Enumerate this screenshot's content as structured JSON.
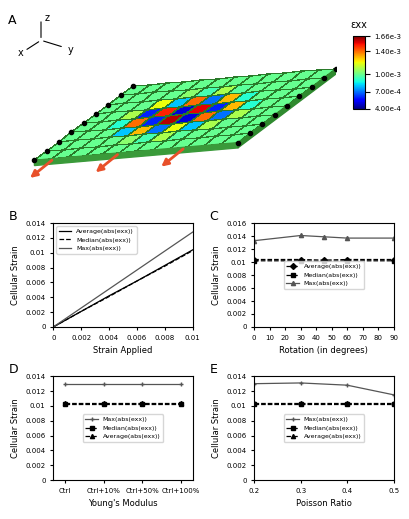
{
  "chart_data": [
    {
      "type": "heatmap",
      "title": "A",
      "annotations": [
        "x",
        "y",
        "z"
      ],
      "tick_labels": false,
      "cells": [
        [
          0.001,
          0.001,
          0.001,
          0.001,
          0.001,
          0.001,
          0.001,
          0.001,
          0.001,
          0.001,
          0.001,
          0.001
        ],
        [
          0.001,
          0.001,
          0.001,
          0.001,
          0.00105,
          0.00095,
          0.0011,
          0.00098,
          0.001,
          0.001,
          0.001,
          0.001
        ],
        [
          0.001,
          0.001,
          0.001,
          0.0012,
          0.0008,
          0.0014,
          0.0007,
          0.0013,
          0.0009,
          0.001,
          0.001,
          0.001
        ],
        [
          0.001,
          0.001,
          0.0011,
          0.0006,
          0.0015,
          0.0005,
          0.00155,
          0.0006,
          0.0013,
          0.0009,
          0.001,
          0.001
        ],
        [
          0.001,
          0.001,
          0.0009,
          0.0014,
          0.0006,
          0.0016,
          0.0005,
          0.0014,
          0.0007,
          0.0011,
          0.001,
          0.001
        ],
        [
          0.001,
          0.001,
          0.001,
          0.0008,
          0.0013,
          0.0007,
          0.0012,
          0.0008,
          0.0011,
          0.001,
          0.001,
          0.001
        ],
        [
          0.001,
          0.001,
          0.001,
          0.001,
          0.00105,
          0.00095,
          0.0011,
          0.00098,
          0.001,
          0.001,
          0.001,
          0.001
        ],
        [
          0.001,
          0.001,
          0.001,
          0.001,
          0.001,
          0.001,
          0.001,
          0.001,
          0.001,
          0.001,
          0.001,
          0.001
        ]
      ],
      "colorbar_label": "εxx",
      "colorbar_range": [
        0.0004,
        0.00166
      ],
      "colorbar_ticks": [
        {
          "value": 0.00166,
          "label": "1.66e-3"
        },
        {
          "value": 0.0014,
          "label": "1.40e-3"
        },
        {
          "value": 0.001,
          "label": "1.00e-3"
        },
        {
          "value": 0.0007,
          "label": "7.00e-4"
        },
        {
          "value": 0.0004,
          "label": "4.00e-4"
        }
      ]
    },
    {
      "type": "line",
      "title": "B",
      "xlabel": "Strain Applied",
      "ylabel": "Cellular Strain",
      "x": [
        0,
        0.002,
        0.004,
        0.006,
        0.008,
        0.01
      ],
      "series": [
        {
          "name": "Average(abs(exx))",
          "color": "#000000",
          "line_style": "solid",
          "values": [
            0,
            0.0021,
            0.0042,
            0.0062,
            0.0083,
            0.0104
          ]
        },
        {
          "name": "Median(abs(exx))",
          "color": "#000000",
          "line_style": "dashed",
          "values": [
            0,
            0.0021,
            0.0041,
            0.0062,
            0.0082,
            0.0103
          ]
        },
        {
          "name": "Max(abs(exx))",
          "color": "#555555",
          "line_style": "solid",
          "values": [
            0,
            0.00256,
            0.00512,
            0.00768,
            0.01024,
            0.0128
          ]
        }
      ],
      "xlim": [
        0,
        0.01
      ],
      "xticks": [
        0,
        0.002,
        0.004,
        0.006,
        0.008,
        0.01
      ],
      "ylim": [
        0,
        0.014
      ],
      "yticks": [
        0,
        0.002,
        0.004,
        0.006,
        0.008,
        0.01,
        0.012,
        0.014
      ],
      "legend": "upper left"
    },
    {
      "type": "line",
      "title": "C",
      "xlabel": "Rotation (in degrees)",
      "ylabel": "Cellular Strain",
      "x": [
        0,
        30,
        45,
        60,
        90
      ],
      "series": [
        {
          "name": "Average(abs(exx))",
          "color": "#000000",
          "line_style": "dashed",
          "marker": "diamond",
          "values": [
            0.0104,
            0.0104,
            0.0103,
            0.0104,
            0.0104
          ]
        },
        {
          "name": "Median(abs(exx))",
          "color": "#000000",
          "line_style": "dashed",
          "marker": "square",
          "values": [
            0.0102,
            0.0102,
            0.0101,
            0.0102,
            0.0102
          ]
        },
        {
          "name": "Max(abs(exx))",
          "color": "#555555",
          "line_style": "solid",
          "marker": "triangle",
          "values": [
            0.0133,
            0.0141,
            0.0139,
            0.0137,
            0.0137
          ]
        }
      ],
      "xlim": [
        0,
        90
      ],
      "xticks": [
        0,
        10,
        20,
        30,
        40,
        50,
        60,
        70,
        80,
        90
      ],
      "ylim": [
        0,
        0.016
      ],
      "yticks": [
        0,
        0.002,
        0.004,
        0.006,
        0.008,
        0.01,
        0.012,
        0.014,
        0.016
      ],
      "legend": "center"
    },
    {
      "type": "line",
      "title": "D",
      "xlabel": "Young's Modulus",
      "ylabel": "Cellular Strain",
      "categories": [
        "Ctrl",
        "Ctrl+10%",
        "Ctrl+50%",
        "Ctrl+100%"
      ],
      "series": [
        {
          "name": "Max(abs(exx))",
          "color": "#555555",
          "line_style": "solid",
          "marker": "plus",
          "values": [
            0.013,
            0.013,
            0.013,
            0.013
          ]
        },
        {
          "name": "Median(abs(exx))",
          "color": "#000000",
          "line_style": "dashed",
          "marker": "square",
          "values": [
            0.0103,
            0.0103,
            0.0103,
            0.0103
          ]
        },
        {
          "name": "Average(abs(exx))",
          "color": "#000000",
          "line_style": "dashed",
          "marker": "triangle",
          "values": [
            0.0104,
            0.0104,
            0.0104,
            0.0104
          ]
        }
      ],
      "ylim": [
        0,
        0.014
      ],
      "yticks": [
        0,
        0.002,
        0.004,
        0.006,
        0.008,
        0.01,
        0.012,
        0.014
      ],
      "legend": "center"
    },
    {
      "type": "line",
      "title": "E",
      "xlabel": "Poisson Ratio",
      "ylabel": "Cellular Strain",
      "x": [
        0.2,
        0.3,
        0.4,
        0.5
      ],
      "series": [
        {
          "name": "Max(abs(exx))",
          "color": "#555555",
          "line_style": "solid",
          "marker": "plus",
          "values": [
            0.013,
            0.0131,
            0.0128,
            0.0115
          ]
        },
        {
          "name": "Median(abs(exx))",
          "color": "#000000",
          "line_style": "dashed",
          "marker": "square",
          "values": [
            0.0102,
            0.0102,
            0.0102,
            0.0102
          ]
        },
        {
          "name": "Average(abs(exx))",
          "color": "#000000",
          "line_style": "dashed",
          "marker": "triangle",
          "values": [
            0.0104,
            0.0104,
            0.0104,
            0.0104
          ]
        }
      ],
      "xlim": [
        0.2,
        0.5
      ],
      "xticks": [
        0.2,
        0.3,
        0.4,
        0.5
      ],
      "ylim": [
        0,
        0.014
      ],
      "yticks": [
        0,
        0.002,
        0.004,
        0.006,
        0.008,
        0.01,
        0.012,
        0.014
      ],
      "legend": "center"
    }
  ]
}
